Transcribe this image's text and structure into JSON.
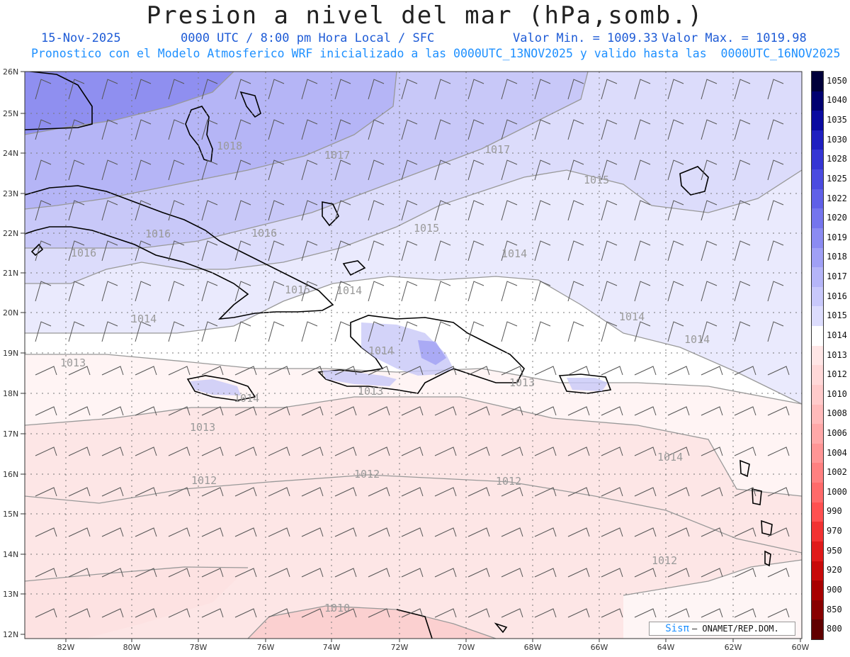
{
  "header": {
    "title": "Presion a nivel del mar (hPa,somb.)",
    "date": "15-Nov-2025",
    "time_info": "0000 UTC / 8:00 pm Hora Local / SFC",
    "min_label": "Valor Min. = 1009.33",
    "max_label": "Valor Max. = 1019.98",
    "forecast_line": "Pronostico con el Modelo Atmosferico WRF inicializado a las 0000UTC_13NOV2025 y valido hasta las  0000UTC_16NOV2025"
  },
  "axes": {
    "lat_labels": [
      "26N",
      "25N",
      "24N",
      "23N",
      "22N",
      "21N",
      "20N",
      "19N",
      "18N",
      "17N",
      "16N",
      "15N",
      "14N",
      "13N",
      "12N"
    ],
    "lon_labels": [
      "82W",
      "80W",
      "78W",
      "76W",
      "74W",
      "72W",
      "70W",
      "68W",
      "66W",
      "64W",
      "62W",
      "60W"
    ]
  },
  "colorbar": {
    "levels": [
      "1050",
      "1040",
      "1035",
      "1030",
      "1028",
      "1025",
      "1022",
      "1020",
      "1019",
      "1018",
      "1017",
      "1016",
      "1015",
      "1014",
      "1013",
      "1012",
      "1010",
      "1008",
      "1006",
      "1004",
      "1002",
      "1000",
      "990",
      "970",
      "950",
      "920",
      "900",
      "850",
      "800"
    ],
    "colors": [
      "#00003a",
      "#000070",
      "#0a0aa0",
      "#1f1fc0",
      "#3535d4",
      "#4b4be0",
      "#6060e8",
      "#7575ee",
      "#8b8bf2",
      "#a0a0f6",
      "#b5b5f8",
      "#c8c8fb",
      "#dcdcfd",
      "#ffffff",
      "#ffe6e6",
      "#ffd8d8",
      "#ffcaca",
      "#ffbaba",
      "#ffa8a8",
      "#ff9595",
      "#ff8080",
      "#ff6a6a",
      "#ff5050",
      "#f23232",
      "#e01a1a",
      "#c80a0a",
      "#a80000",
      "#880000",
      "#600000"
    ]
  },
  "contour_labels": [
    "1018",
    "1017",
    "1016",
    "1016",
    "1017",
    "1016",
    "1015",
    "1015",
    "1014",
    "1015",
    "1014",
    "1014",
    "1014",
    "1014",
    "1013",
    "1013",
    "1014",
    "1013",
    "1013",
    "1012",
    "1012",
    "1012",
    "1012",
    "1010",
    "1014",
    "1014"
  ],
  "credit": {
    "brand": "Sisπ",
    "text": "– ONAMET/REP.DOM."
  }
}
